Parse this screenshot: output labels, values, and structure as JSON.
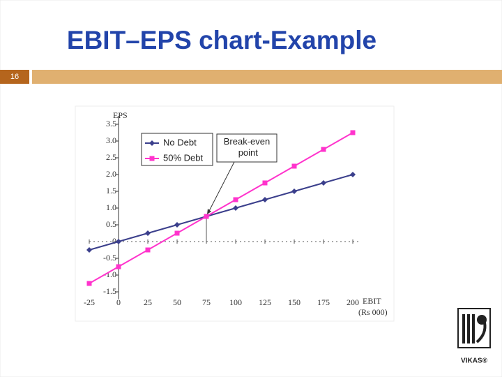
{
  "slide": {
    "title": "EBIT–EPS chart-Example",
    "number": "16",
    "logo": "VIKAS®"
  },
  "chart_data": {
    "type": "line",
    "x_label": "EBIT",
    "x_unit": "(Rs 000)",
    "y_label": "EPS",
    "annotation": "Break-even point",
    "x": [
      -25,
      0,
      25,
      50,
      75,
      100,
      125,
      150,
      175,
      200
    ],
    "series": [
      {
        "name": "No Debt",
        "color": "#3b3f8c",
        "marker": "diamond",
        "values": [
          -0.25,
          0,
          0.25,
          0.5,
          0.75,
          1,
          1.25,
          1.5,
          1.75,
          2
        ]
      },
      {
        "name": "50% Debt",
        "color": "#ff33cc",
        "marker": "square",
        "values": [
          -1.25,
          -0.75,
          -0.25,
          0.25,
          0.75,
          1.25,
          1.75,
          2.25,
          2.75,
          3.25
        ]
      }
    ],
    "xlim": [
      -25,
      200
    ],
    "xticks": [
      -25,
      0,
      25,
      50,
      75,
      100,
      125,
      150,
      175,
      200
    ],
    "ylim": [
      -1.5,
      3.5
    ],
    "yticks": [
      -1.5,
      {
        "value": -1,
        "label": "-1.0"
      },
      -0.5,
      0,
      0.5,
      {
        "value": 1,
        "label": "1.0"
      },
      1.5,
      {
        "value": 2,
        "label": "2.0"
      },
      2.5,
      {
        "value": 3,
        "label": "3.0"
      },
      3.5
    ],
    "break_even": [
      75,
      0.75
    ]
  }
}
